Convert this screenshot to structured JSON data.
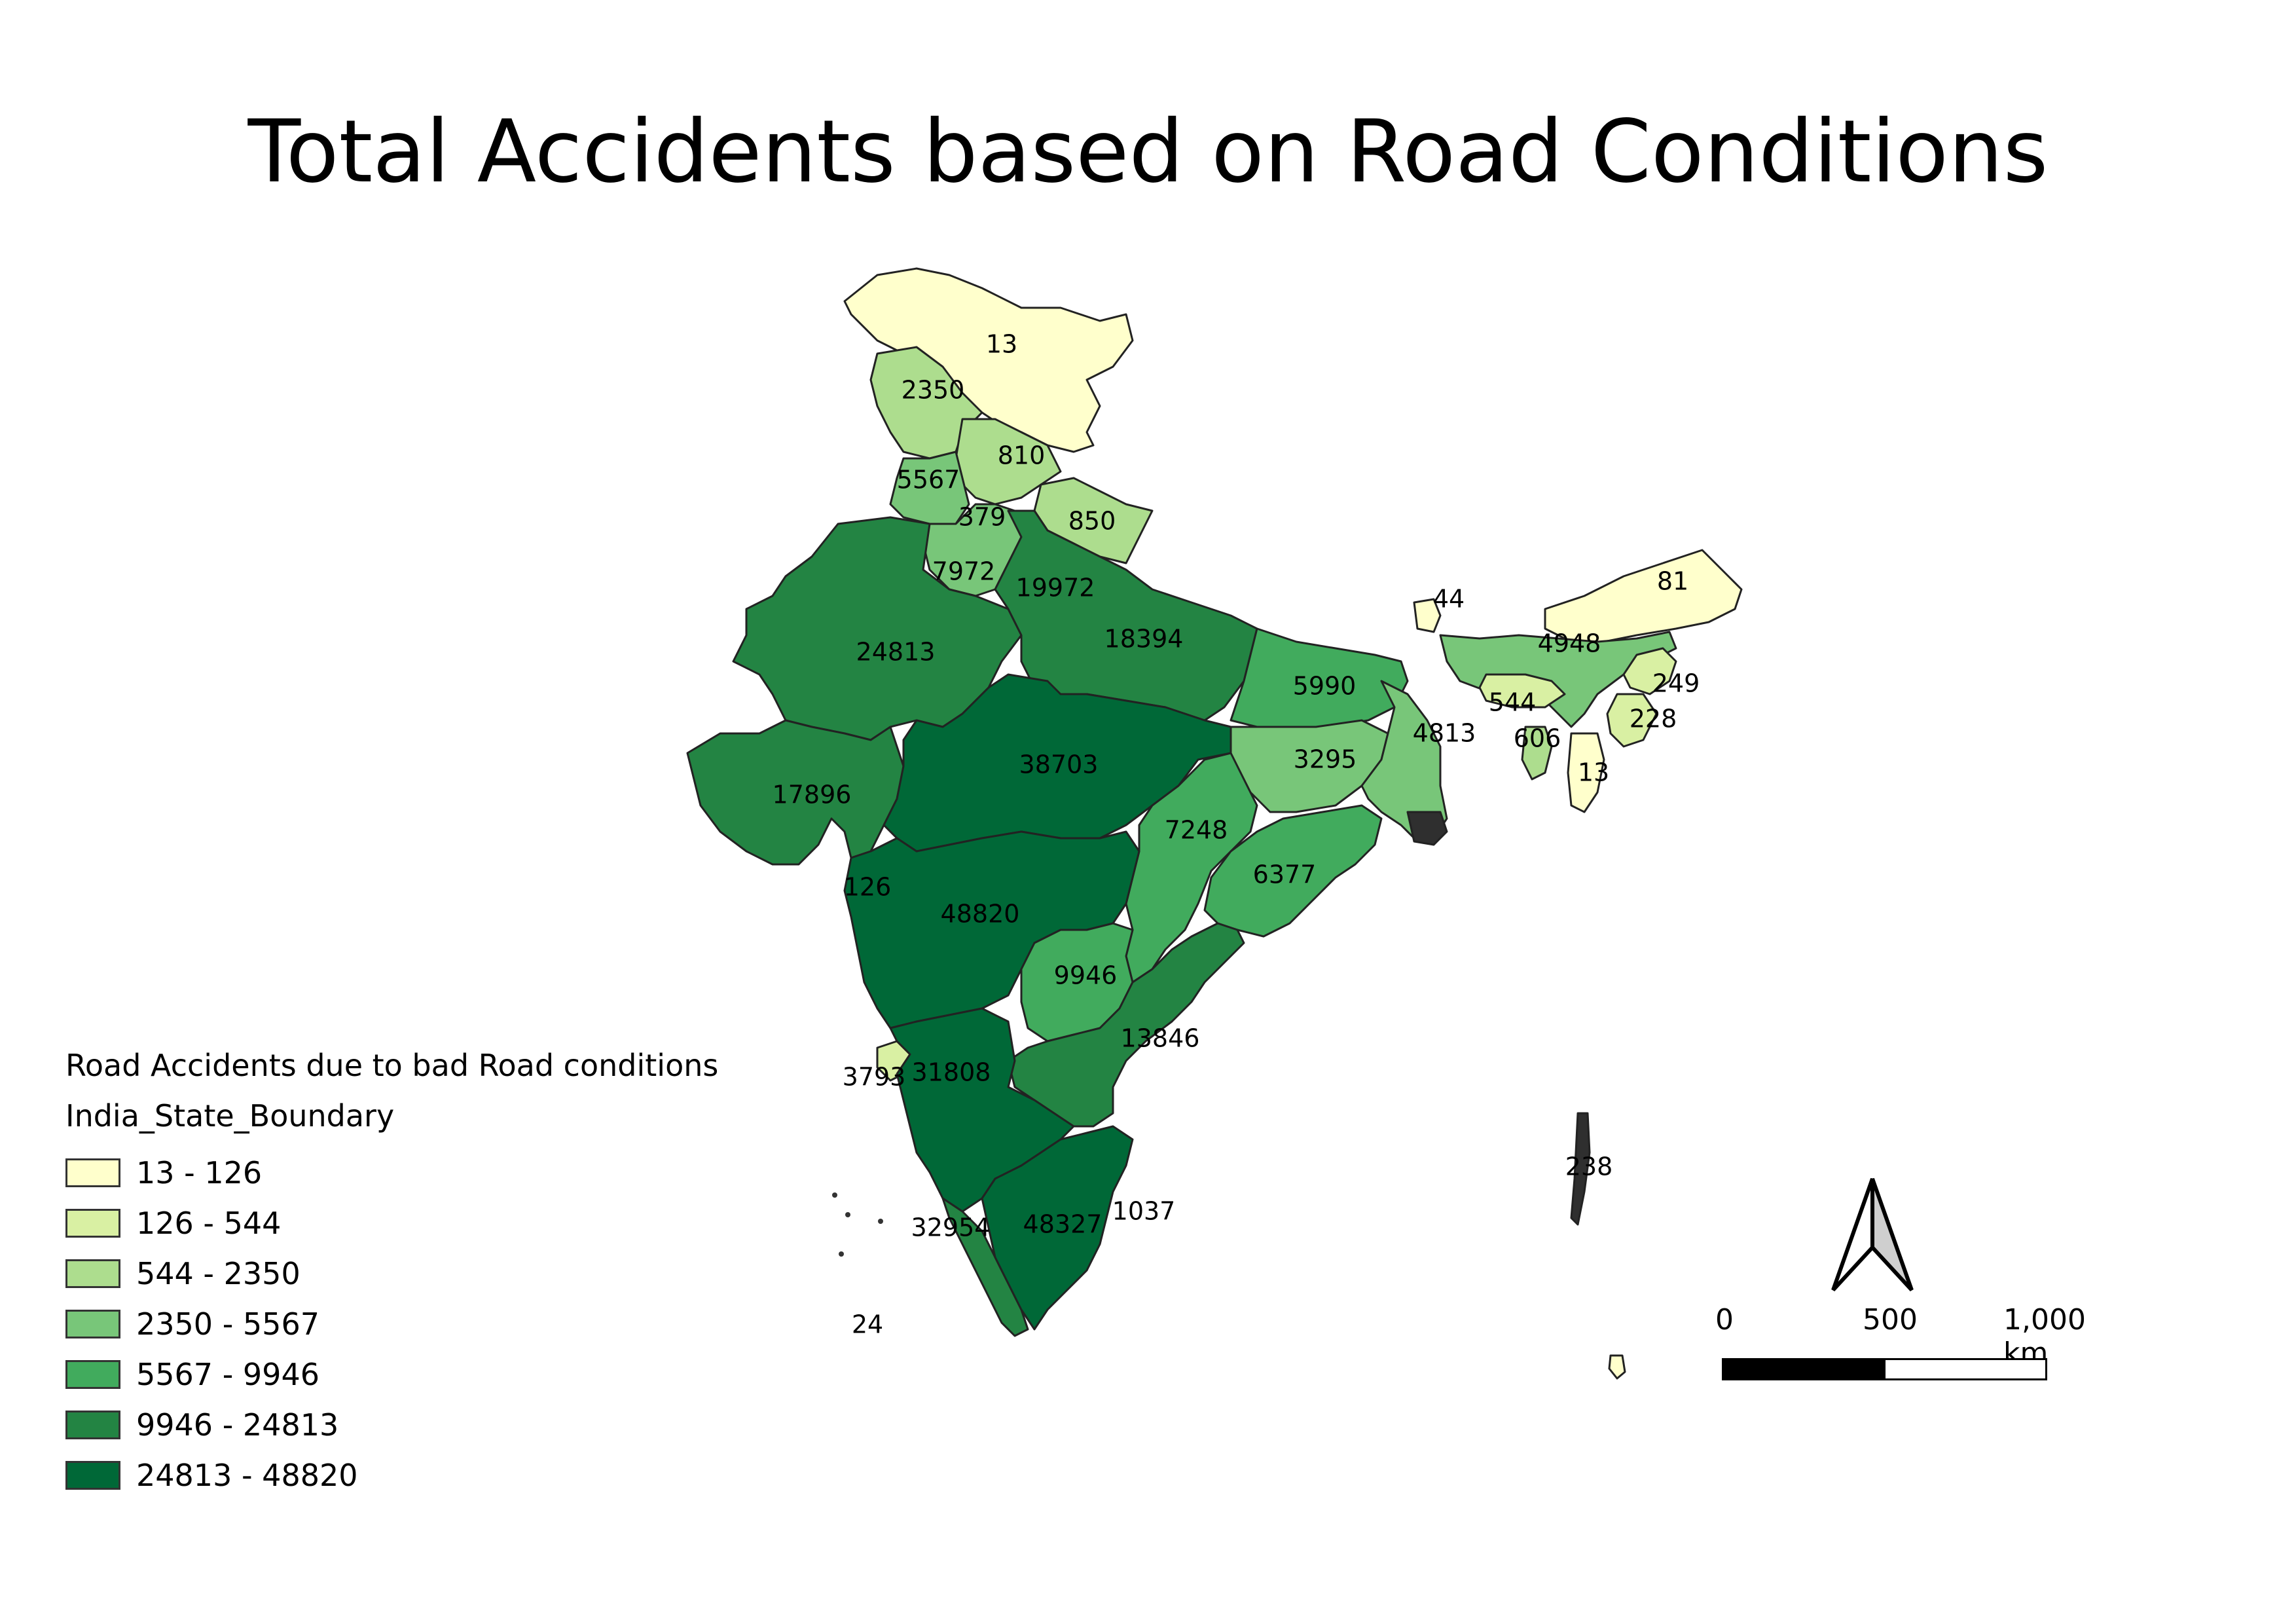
{
  "title": "Total Accidents based on Road Conditions",
  "legend": {
    "title": "Road Accidents due to bad Road conditions",
    "layer": "India_State_Boundary",
    "classes": [
      {
        "label": "13 - 126",
        "color": "#ffffcc"
      },
      {
        "label": "126 - 544",
        "color": "#d9f0a3"
      },
      {
        "label": "544 - 2350",
        "color": "#addd8e"
      },
      {
        "label": "2350 - 5567",
        "color": "#78c679"
      },
      {
        "label": "5567 - 9946",
        "color": "#41ab5d"
      },
      {
        "label": "9946 - 24813",
        "color": "#238443"
      },
      {
        "label": "24813 - 48820",
        "color": "#006837"
      }
    ]
  },
  "state_values": {
    "jammu_kashmir": "13",
    "ladakh_area": "2350",
    "himachal": "810",
    "punjab": "5567",
    "chandigarh": "379",
    "uttarakhand": "850",
    "haryana": "7972",
    "delhi_region": "19972",
    "rajasthan": "24813",
    "uttar_pradesh": "18394",
    "bihar": "5990",
    "sikkim": "44",
    "arunachal": "81",
    "assam": "4948",
    "nagaland": "249",
    "meghalaya": "544",
    "manipur": "228",
    "tripura": "606",
    "mizoram": "13",
    "west_bengal": "4813",
    "jharkhand": "3295",
    "gujarat": "17896",
    "madhya_pradesh": "38703",
    "chhattisgarh": "7248",
    "odisha": "6377",
    "daman_diu": "126",
    "maharashtra": "48820",
    "telangana": "9946",
    "andhra_pradesh": "13846",
    "goa": "3793",
    "karnataka": "31808",
    "kerala": "32954",
    "tamil_nadu": "48327",
    "puducherry": "1037",
    "andaman": "238",
    "lakshadweep": "24"
  },
  "scale_bar": {
    "labels": [
      "0",
      "500",
      "1,000 km"
    ]
  },
  "north_arrow": "north-arrow-icon"
}
